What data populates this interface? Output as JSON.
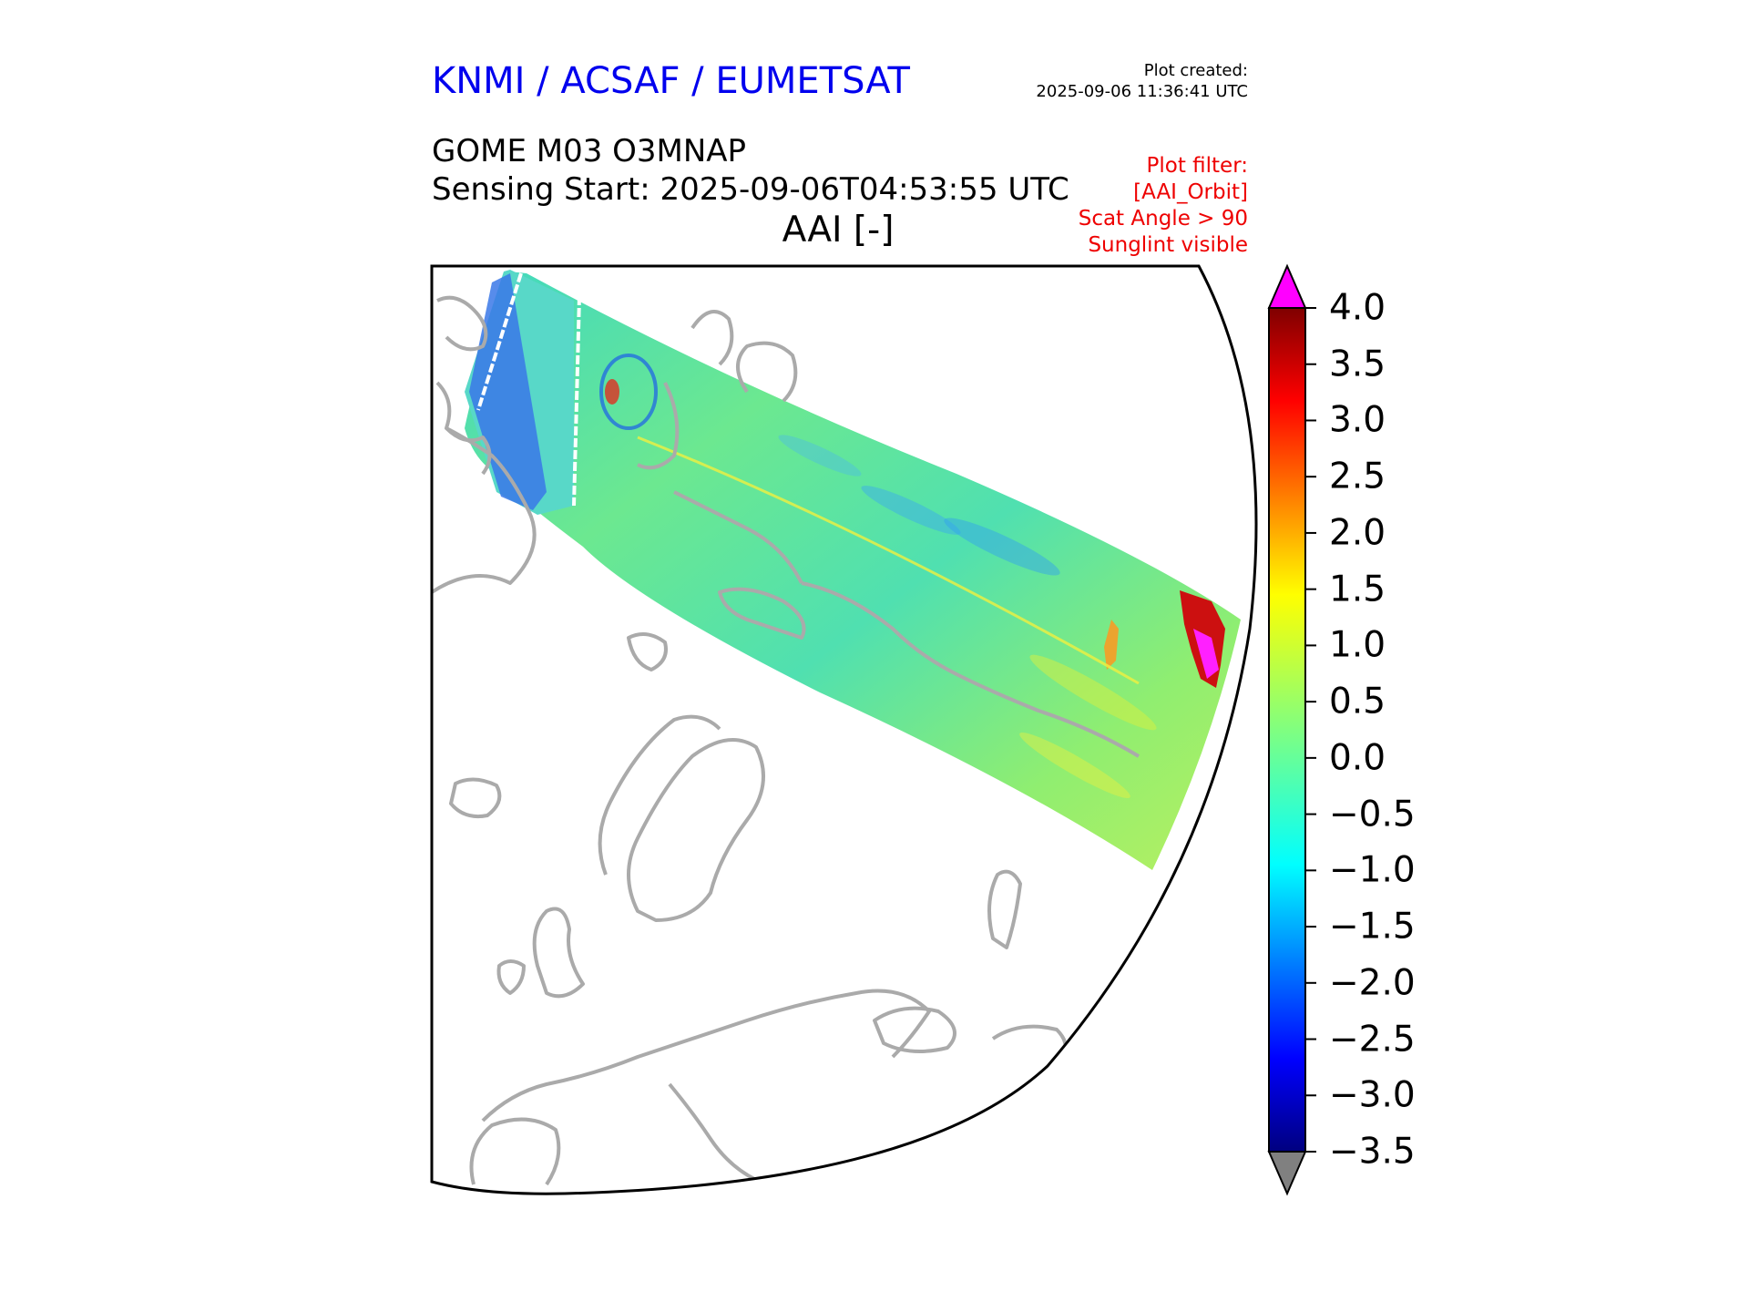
{
  "header": {
    "organisation": "KNMI / ACSAF / EUMETSAT",
    "plot_created_label": "Plot created:",
    "plot_created_value": "2025-09-06 11:36:41 UTC",
    "product": "GOME M03 O3MNAP",
    "sensing_start": "Sensing Start: 2025-09-06T04:53:55 UTC",
    "quantity": "AAI [-]"
  },
  "plot_filter": {
    "title": "Plot filter:",
    "lines": [
      "[AAI_Orbit]",
      "Scat Angle > 90",
      "Sunglint visible"
    ]
  },
  "colorbar": {
    "min": -3.5,
    "max": 4.0,
    "ticks": [
      "4.0",
      "3.5",
      "3.0",
      "2.5",
      "2.0",
      "1.5",
      "1.0",
      "0.5",
      "0.0",
      "−0.5",
      "−1.0",
      "−1.5",
      "−2.0",
      "−2.5",
      "−3.0",
      "−3.5"
    ],
    "over_color": "#ff00ff",
    "under_color": "#808080",
    "colormap": "jet"
  },
  "map": {
    "coastline_color": "#aaaaaa",
    "frame_color": "#000000"
  }
}
